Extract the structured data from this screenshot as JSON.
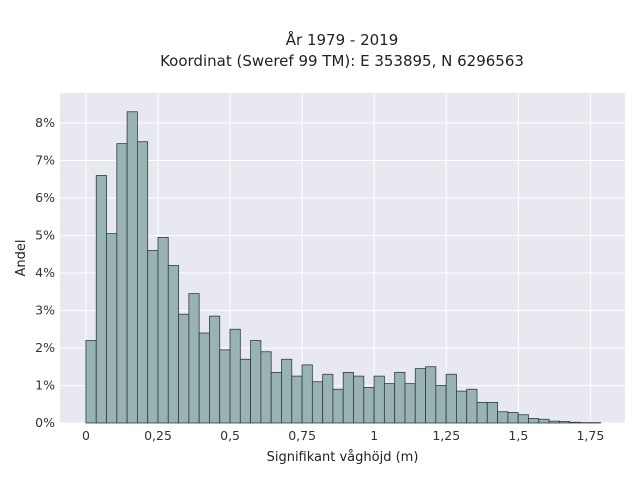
{
  "chart_data": {
    "type": "bar",
    "title": "År 1979 - 2019",
    "subtitle": "Koordinat (Sweref 99 TM): E 353895, N 6296563",
    "xlabel": "Signifikant våghöjd (m)",
    "ylabel": "Andel",
    "x_ticks": [
      {
        "value": 0,
        "label": "0"
      },
      {
        "value": 0.25,
        "label": "0,25"
      },
      {
        "value": 0.5,
        "label": "0,5"
      },
      {
        "value": 0.75,
        "label": "0,75"
      },
      {
        "value": 1.0,
        "label": "1"
      },
      {
        "value": 1.25,
        "label": "1,25"
      },
      {
        "value": 1.5,
        "label": "1,5"
      },
      {
        "value": 1.75,
        "label": "1,75"
      }
    ],
    "y_ticks": [
      {
        "value": 0,
        "label": "0%"
      },
      {
        "value": 1,
        "label": "1%"
      },
      {
        "value": 2,
        "label": "2%"
      },
      {
        "value": 3,
        "label": "3%"
      },
      {
        "value": 4,
        "label": "4%"
      },
      {
        "value": 5,
        "label": "5%"
      },
      {
        "value": 6,
        "label": "6%"
      },
      {
        "value": 7,
        "label": "7%"
      },
      {
        "value": 8,
        "label": "8%"
      }
    ],
    "xlim": [
      -0.09,
      1.87
    ],
    "ylim": [
      0,
      8.8
    ],
    "bin_start": 0.0,
    "bin_width": 0.0357,
    "values": [
      2.2,
      6.6,
      5.05,
      7.45,
      8.3,
      7.5,
      4.6,
      4.95,
      4.2,
      2.9,
      3.45,
      2.4,
      2.85,
      1.95,
      2.5,
      1.7,
      2.2,
      1.9,
      1.35,
      1.7,
      1.25,
      1.55,
      1.1,
      1.3,
      0.9,
      1.35,
      1.25,
      0.95,
      1.25,
      1.05,
      1.35,
      1.05,
      1.45,
      1.5,
      1.0,
      1.3,
      0.85,
      0.9,
      0.55,
      0.55,
      0.3,
      0.28,
      0.22,
      0.12,
      0.1,
      0.05,
      0.04,
      0.02,
      0.01,
      0.01
    ],
    "grid": true,
    "colors": {
      "bar_fill": "#99b2b2",
      "bar_stroke": "#2c3e3e",
      "plot_background": "#e8e8f0",
      "grid": "#ffffff"
    }
  }
}
